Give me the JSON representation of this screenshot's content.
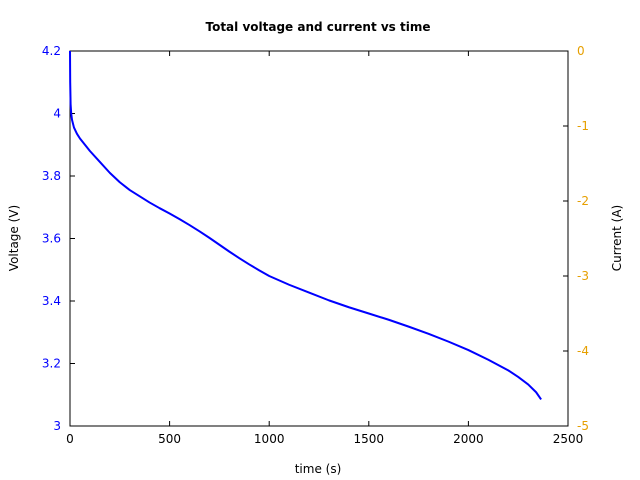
{
  "chart_data": {
    "type": "line",
    "title": "Total voltage and current vs time",
    "xlabel": "time (s)",
    "ylabel": "Voltage (V)",
    "y2label": "Current (A)",
    "xlim": [
      0,
      2500
    ],
    "ylim": [
      3,
      4.2
    ],
    "y2lim": [
      -5,
      0
    ],
    "xticks": [
      "0",
      "500",
      "1000",
      "1500",
      "2000",
      "2500"
    ],
    "yticks": [
      "3",
      "3.2",
      "3.4",
      "3.6",
      "3.8",
      "4",
      "4.2"
    ],
    "y2ticks": [
      "-5",
      "-4",
      "-3",
      "-2",
      "-1",
      "0"
    ],
    "grid": false,
    "colors": {
      "voltage": "#0000ff",
      "current_axis": "#e69f00",
      "axes": "#000000"
    },
    "series": [
      {
        "axis": "left",
        "x": [
          0,
          1,
          3,
          6,
          10,
          20,
          35,
          50,
          75,
          100,
          150,
          200,
          250,
          300,
          350,
          400,
          450,
          500,
          550,
          600,
          650,
          700,
          750,
          800,
          850,
          900,
          950,
          1000,
          1100,
          1200,
          1300,
          1400,
          1500,
          1600,
          1700,
          1800,
          1900,
          2000,
          2100,
          2200,
          2250,
          2300,
          2340,
          2365
        ],
        "values": [
          4.2,
          4.1,
          4.03,
          4.0,
          3.98,
          3.955,
          3.935,
          3.92,
          3.9,
          3.88,
          3.845,
          3.81,
          3.78,
          3.755,
          3.735,
          3.715,
          3.697,
          3.68,
          3.662,
          3.643,
          3.623,
          3.602,
          3.58,
          3.558,
          3.537,
          3.517,
          3.498,
          3.48,
          3.452,
          3.427,
          3.402,
          3.38,
          3.36,
          3.34,
          3.318,
          3.295,
          3.27,
          3.243,
          3.212,
          3.178,
          3.157,
          3.133,
          3.108,
          3.085
        ]
      }
    ]
  }
}
